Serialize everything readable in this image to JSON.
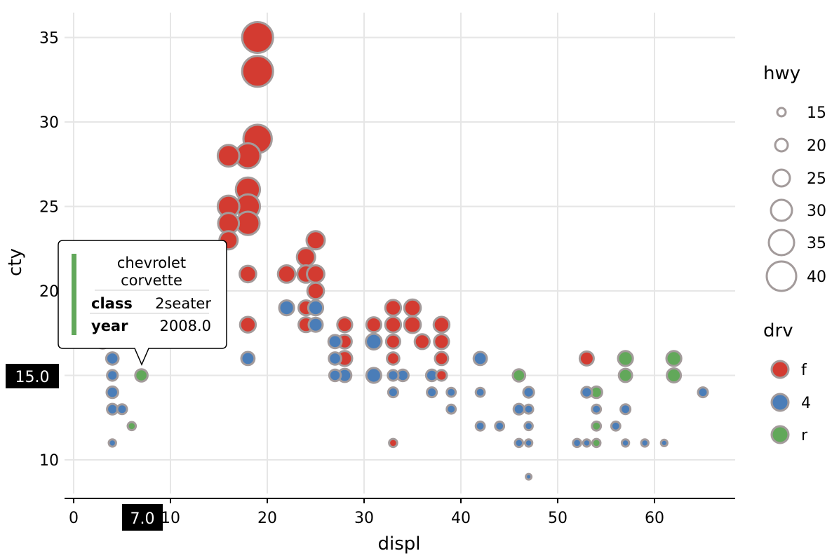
{
  "chart_data": {
    "type": "scatter",
    "xlabel": "displ",
    "ylabel": "cty",
    "xlim": [
      0,
      68
    ],
    "ylim": [
      8,
      36
    ],
    "x_ticks": [
      0,
      10,
      20,
      30,
      40,
      50,
      60
    ],
    "y_ticks": [
      10,
      15,
      20,
      25,
      30,
      35
    ],
    "grid": true,
    "legends": [
      {
        "title": "hwy",
        "type": "size",
        "placement": "right",
        "entries": [
          {
            "label": "15",
            "value": 15
          },
          {
            "label": "20",
            "value": 20
          },
          {
            "label": "25",
            "value": 25
          },
          {
            "label": "30",
            "value": 30
          },
          {
            "label": "35",
            "value": 35
          },
          {
            "label": "40",
            "value": 40
          }
        ]
      },
      {
        "title": "drv",
        "type": "color",
        "placement": "right",
        "entries": [
          {
            "label": "f",
            "color": "#d33b31"
          },
          {
            "label": "4",
            "color": "#4a7db8"
          },
          {
            "label": "r",
            "color": "#62a85a"
          }
        ]
      }
    ],
    "colors": {
      "f": "#d33b31",
      "4": "#4a7db8",
      "r": "#62a85a",
      "point_stroke": "#a39b9b"
    },
    "points": [
      {
        "x": 19,
        "y": 35,
        "hwy": 44,
        "drv": "f"
      },
      {
        "x": 19,
        "y": 33,
        "hwy": 44,
        "drv": "f"
      },
      {
        "x": 19,
        "y": 29,
        "hwy": 41,
        "drv": "f"
      },
      {
        "x": 18,
        "y": 28,
        "hwy": 37,
        "drv": "f"
      },
      {
        "x": 16,
        "y": 28,
        "hwy": 33,
        "drv": "f"
      },
      {
        "x": 18,
        "y": 26,
        "hwy": 36,
        "drv": "f"
      },
      {
        "x": 18,
        "y": 25,
        "hwy": 36,
        "drv": "f"
      },
      {
        "x": 16,
        "y": 25,
        "hwy": 33,
        "drv": "f"
      },
      {
        "x": 16,
        "y": 24,
        "hwy": 32,
        "drv": "f"
      },
      {
        "x": 18,
        "y": 24,
        "hwy": 35,
        "drv": "f"
      },
      {
        "x": 16,
        "y": 23,
        "hwy": 29,
        "drv": "f"
      },
      {
        "x": 25,
        "y": 23,
        "hwy": 29,
        "drv": "f"
      },
      {
        "x": 24,
        "y": 22,
        "hwy": 29,
        "drv": "f"
      },
      {
        "x": 18,
        "y": 21,
        "hwy": 27,
        "drv": "f"
      },
      {
        "x": 22,
        "y": 21,
        "hwy": 28,
        "drv": "f"
      },
      {
        "x": 24,
        "y": 21,
        "hwy": 28,
        "drv": "f"
      },
      {
        "x": 25,
        "y": 21,
        "hwy": 28,
        "drv": "f"
      },
      {
        "x": 25,
        "y": 20,
        "hwy": 27,
        "drv": "f"
      },
      {
        "x": 22,
        "y": 19,
        "hwy": 25,
        "drv": "4"
      },
      {
        "x": 24,
        "y": 19,
        "hwy": 25,
        "drv": "f"
      },
      {
        "x": 25,
        "y": 19,
        "hwy": 25,
        "drv": "4"
      },
      {
        "x": 33,
        "y": 19,
        "hwy": 26,
        "drv": "f"
      },
      {
        "x": 35,
        "y": 19,
        "hwy": 27,
        "drv": "f"
      },
      {
        "x": 18,
        "y": 18,
        "hwy": 26,
        "drv": "f"
      },
      {
        "x": 24,
        "y": 18,
        "hwy": 25,
        "drv": "f"
      },
      {
        "x": 25,
        "y": 18,
        "hwy": 24,
        "drv": "4"
      },
      {
        "x": 28,
        "y": 18,
        "hwy": 25,
        "drv": "f"
      },
      {
        "x": 31,
        "y": 18,
        "hwy": 25,
        "drv": "f"
      },
      {
        "x": 33,
        "y": 18,
        "hwy": 26,
        "drv": "f"
      },
      {
        "x": 35,
        "y": 18,
        "hwy": 27,
        "drv": "f"
      },
      {
        "x": 38,
        "y": 18,
        "hwy": 26,
        "drv": "f"
      },
      {
        "x": 3,
        "y": 17,
        "hwy": 24,
        "drv": "4"
      },
      {
        "x": 27,
        "y": 17,
        "hwy": 23,
        "drv": "4"
      },
      {
        "x": 28,
        "y": 17,
        "hwy": 24,
        "drv": "f"
      },
      {
        "x": 31,
        "y": 17,
        "hwy": 26,
        "drv": "4"
      },
      {
        "x": 33,
        "y": 17,
        "hwy": 24,
        "drv": "f"
      },
      {
        "x": 36,
        "y": 17,
        "hwy": 25,
        "drv": "f"
      },
      {
        "x": 38,
        "y": 17,
        "hwy": 25,
        "drv": "f"
      },
      {
        "x": 4,
        "y": 16,
        "hwy": 22,
        "drv": "4"
      },
      {
        "x": 18,
        "y": 16,
        "hwy": 23,
        "drv": "4"
      },
      {
        "x": 27,
        "y": 16,
        "hwy": 22,
        "drv": "4"
      },
      {
        "x": 28,
        "y": 16,
        "hwy": 25,
        "drv": "f"
      },
      {
        "x": 33,
        "y": 16,
        "hwy": 22,
        "drv": "f"
      },
      {
        "x": 38,
        "y": 16,
        "hwy": 23,
        "drv": "f"
      },
      {
        "x": 42,
        "y": 16,
        "hwy": 23,
        "drv": "4"
      },
      {
        "x": 53,
        "y": 16,
        "hwy": 24,
        "drv": "f"
      },
      {
        "x": 57,
        "y": 16,
        "hwy": 25,
        "drv": "r"
      },
      {
        "x": 62,
        "y": 16,
        "hwy": 25,
        "drv": "r"
      },
      {
        "x": 4,
        "y": 15,
        "hwy": 20,
        "drv": "4"
      },
      {
        "x": 7,
        "y": 15,
        "hwy": 22,
        "drv": "r"
      },
      {
        "x": 27,
        "y": 15,
        "hwy": 21,
        "drv": "4"
      },
      {
        "x": 28,
        "y": 15,
        "hwy": 23,
        "drv": "4"
      },
      {
        "x": 31,
        "y": 15,
        "hwy": 25,
        "drv": "4"
      },
      {
        "x": 33,
        "y": 15,
        "hwy": 20,
        "drv": "4"
      },
      {
        "x": 34,
        "y": 15,
        "hwy": 21,
        "drv": "4"
      },
      {
        "x": 37,
        "y": 15,
        "hwy": 21,
        "drv": "4"
      },
      {
        "x": 38,
        "y": 15,
        "hwy": 20,
        "drv": "f"
      },
      {
        "x": 46,
        "y": 15,
        "hwy": 22,
        "drv": "r"
      },
      {
        "x": 57,
        "y": 15,
        "hwy": 23,
        "drv": "r"
      },
      {
        "x": 62,
        "y": 15,
        "hwy": 24,
        "drv": "r"
      },
      {
        "x": 4,
        "y": 14,
        "hwy": 21,
        "drv": "4"
      },
      {
        "x": 33,
        "y": 14,
        "hwy": 19,
        "drv": "4"
      },
      {
        "x": 37,
        "y": 14,
        "hwy": 19,
        "drv": "4"
      },
      {
        "x": 39,
        "y": 14,
        "hwy": 18,
        "drv": "4"
      },
      {
        "x": 42,
        "y": 14,
        "hwy": 18,
        "drv": "4"
      },
      {
        "x": 47,
        "y": 14,
        "hwy": 20,
        "drv": "4"
      },
      {
        "x": 53,
        "y": 14,
        "hwy": 20,
        "drv": "4"
      },
      {
        "x": 54,
        "y": 14,
        "hwy": 21,
        "drv": "r"
      },
      {
        "x": 65,
        "y": 14,
        "hwy": 19,
        "drv": "4"
      },
      {
        "x": 4,
        "y": 13,
        "hwy": 20,
        "drv": "4"
      },
      {
        "x": 5,
        "y": 13,
        "hwy": 19,
        "drv": "4"
      },
      {
        "x": 39,
        "y": 13,
        "hwy": 18,
        "drv": "4"
      },
      {
        "x": 46,
        "y": 13,
        "hwy": 20,
        "drv": "4"
      },
      {
        "x": 47,
        "y": 13,
        "hwy": 18,
        "drv": "4"
      },
      {
        "x": 54,
        "y": 13,
        "hwy": 18,
        "drv": "4"
      },
      {
        "x": 57,
        "y": 13,
        "hwy": 19,
        "drv": "4"
      },
      {
        "x": 6,
        "y": 12,
        "hwy": 17,
        "drv": "r"
      },
      {
        "x": 42,
        "y": 12,
        "hwy": 18,
        "drv": "4"
      },
      {
        "x": 44,
        "y": 12,
        "hwy": 18,
        "drv": "4"
      },
      {
        "x": 47,
        "y": 12,
        "hwy": 17,
        "drv": "4"
      },
      {
        "x": 54,
        "y": 12,
        "hwy": 18,
        "drv": "r"
      },
      {
        "x": 56,
        "y": 12,
        "hwy": 18,
        "drv": "4"
      },
      {
        "x": 4,
        "y": 11,
        "hwy": 16,
        "drv": "4"
      },
      {
        "x": 33,
        "y": 11,
        "hwy": 17,
        "drv": "f"
      },
      {
        "x": 46,
        "y": 11,
        "hwy": 17,
        "drv": "4"
      },
      {
        "x": 47,
        "y": 11,
        "hwy": 16,
        "drv": "4"
      },
      {
        "x": 52,
        "y": 11,
        "hwy": 17,
        "drv": "4"
      },
      {
        "x": 53,
        "y": 11,
        "hwy": 16,
        "drv": "4"
      },
      {
        "x": 54,
        "y": 11,
        "hwy": 17,
        "drv": "r"
      },
      {
        "x": 57,
        "y": 11,
        "hwy": 16,
        "drv": "4"
      },
      {
        "x": 59,
        "y": 11,
        "hwy": 16,
        "drv": "4"
      },
      {
        "x": 61,
        "y": 11,
        "hwy": 15,
        "drv": "4"
      },
      {
        "x": 47,
        "y": 9,
        "hwy": 14,
        "drv": "4"
      }
    ],
    "tooltip": {
      "title_line1": "chevrolet",
      "title_line2": "corvette",
      "rows": [
        {
          "key": "class",
          "value": "2seater"
        },
        {
          "key": "year",
          "value": "2008.0"
        }
      ],
      "target": {
        "x": 7,
        "y": 15
      },
      "color": "#62a85a"
    },
    "axis_badges": {
      "x": "7.0",
      "y": "15.0"
    }
  }
}
